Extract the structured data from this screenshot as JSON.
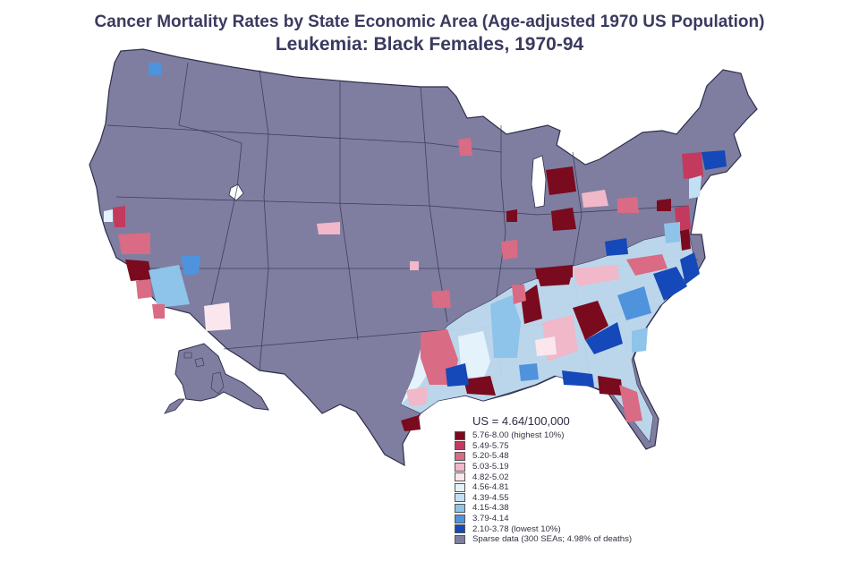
{
  "title": {
    "line1": "Cancer Mortality Rates by State Economic Area (Age-adjusted 1970 US Population)",
    "line2": "Leukemia:  Black Females, 1970-94"
  },
  "legend": {
    "us_rate": "US = 4.64/100,000",
    "items": [
      {
        "label": "5.76-8.00 (highest 10%)",
        "color": "#7a0a1e"
      },
      {
        "label": "5.49-5.75",
        "color": "#c43a5e"
      },
      {
        "label": "5.20-5.48",
        "color": "#d96b84"
      },
      {
        "label": "5.03-5.19",
        "color": "#f0b8c8"
      },
      {
        "label": "4.82-5.02",
        "color": "#fbe6ee"
      },
      {
        "label": "4.56-4.81",
        "color": "#e4f2fb"
      },
      {
        "label": "4.39-4.55",
        "color": "#c2e0f4"
      },
      {
        "label": "4.15-4.38",
        "color": "#8ec3ea"
      },
      {
        "label": "3.79-4.14",
        "color": "#4f93dc"
      },
      {
        "label": "2.10-3.78 (lowest 10%)",
        "color": "#1548b8"
      },
      {
        "label": "Sparse data (300 SEAs; 4.98% of deaths)",
        "color": "#7f7ea0"
      }
    ]
  },
  "colors": {
    "sparse": "#7f7ea0",
    "border": "#2e2e4c"
  }
}
